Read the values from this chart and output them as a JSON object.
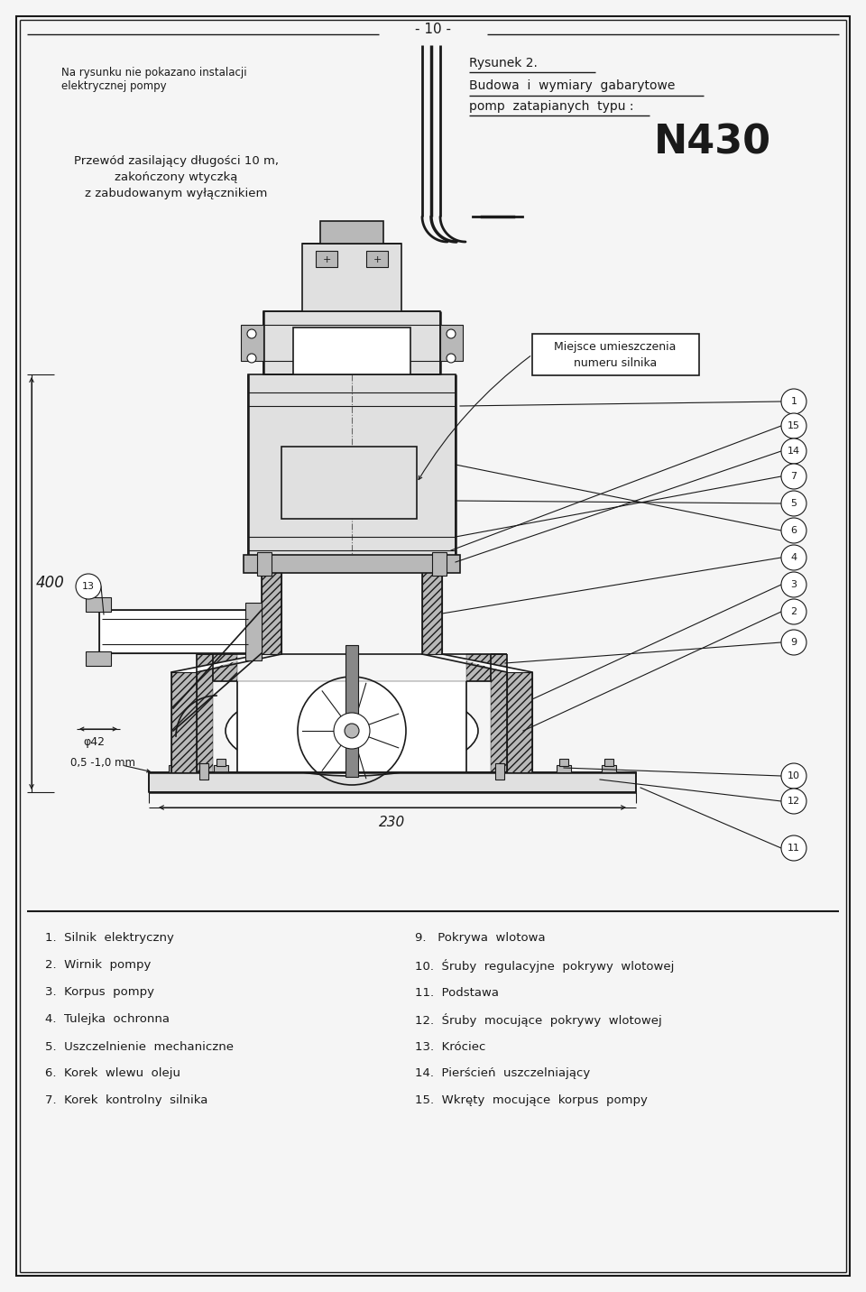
{
  "page_number": "- 10 -",
  "title_right_1": "Rysunek 2.",
  "title_right_2": "Budowa  i  wymiary  gabarytowe",
  "title_right_3": "pomp  zatapianych  typu :",
  "model": "N430",
  "note_left_1": "Na rysunku nie pokazano instalacji",
  "note_left_2": "elektrycznej pompy",
  "cable_text_1": "Przewód zasilający długości 10 m,",
  "cable_text_2": "zakończony wtyczką",
  "cable_text_3": "z zabudowanym wyłącznikiem",
  "label_box_1": "Miejsce umieszczenia",
  "label_box_2": "numeru silnika",
  "dim_400": "400",
  "dim_230": "230",
  "dim_phi42": "φ42",
  "dim_gap": "0,5 -1,0 mm",
  "parts_left": [
    "1.  Silnik  elektryczny",
    "2.  Wirnik  pompy",
    "3.  Korpus  pompy",
    "4.  Tulejka  ochronna",
    "5.  Uszczelnienie  mechaniczne",
    "6.  Korek  wlewu  oleju",
    "7.  Korek  kontrolny  silnika"
  ],
  "parts_right": [
    "9.   Pokrywa  wlotowa",
    "10.  Śruby  regulacyjne  pokrywy  wlotowej",
    "11.  Podstawa",
    "12.  Śruby  mocujące  pokrywy  wlotowej",
    "13.  Króciec",
    "14.  Pierścień  uszczelniający",
    "15.  Wkręty  mocujące  korpus  pompy"
  ],
  "bg_color": "#f5f5f5",
  "line_color": "#1a1a1a",
  "white": "#ffffff",
  "light_gray": "#e0e0e0",
  "mid_gray": "#b8b8b8",
  "dark_gray": "#888888"
}
